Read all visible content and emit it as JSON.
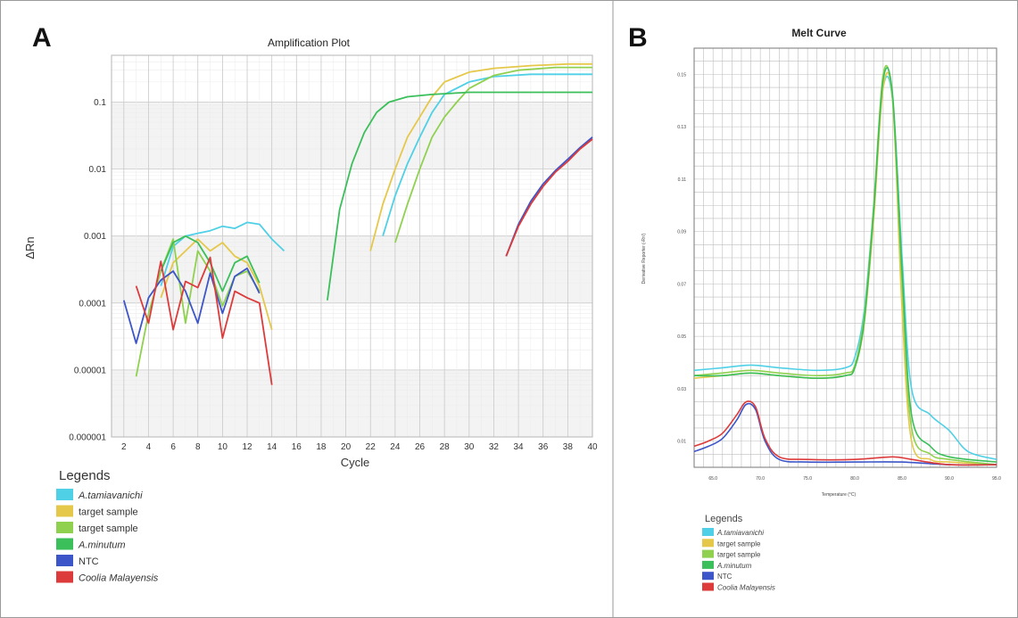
{
  "panels": {
    "a_label": "A",
    "b_label": "B"
  },
  "colors": {
    "a_tamiavanichi": "#4fd0e6",
    "target_sample_1": "#e5c84a",
    "target_sample_2": "#8fd14f",
    "a_minutum": "#3bbf5a",
    "ntc": "#3c55c8",
    "coolia_malayensis": "#dd3b3b"
  },
  "chart_data": [
    {
      "type": "line",
      "title": "Amplification Plot",
      "xlabel": "Cycle",
      "ylabel": "ΔRn",
      "yscale": "log",
      "xlim": [
        1,
        40
      ],
      "ylim": [
        1e-06,
        0.5
      ],
      "x_ticks": [
        "2",
        "4",
        "6",
        "8",
        "10",
        "12",
        "14",
        "16",
        "18",
        "20",
        "22",
        "24",
        "26",
        "28",
        "30",
        "32",
        "34",
        "36",
        "38",
        "40"
      ],
      "y_ticks": [
        {
          "value": 0.1,
          "label": "0.1"
        },
        {
          "value": 0.01,
          "label": "0.01"
        },
        {
          "value": 0.001,
          "label": "0.001"
        },
        {
          "value": 0.0001,
          "label": "0.0001"
        },
        {
          "value": 1e-05,
          "label": "0.00001"
        },
        {
          "value": 1e-06,
          "label": "0.000001"
        }
      ],
      "grid": true,
      "legend_title": "Legends",
      "legend_position": "bottom-left",
      "series": [
        {
          "name": "A.tamiavanichi",
          "italic": true,
          "color": "#4fd0e6",
          "segments": [
            [
              [
                5,
                0.00018
              ],
              [
                6,
                0.0007
              ],
              [
                7,
                0.001
              ],
              [
                8,
                0.0011
              ],
              [
                9,
                0.0012
              ],
              [
                10,
                0.0014
              ],
              [
                11,
                0.0013
              ],
              [
                12,
                0.0016
              ],
              [
                13,
                0.0015
              ],
              [
                14,
                0.0009
              ],
              [
                15,
                0.0006
              ]
            ],
            [
              [
                23,
                0.001
              ],
              [
                24,
                0.004
              ],
              [
                25,
                0.012
              ],
              [
                26,
                0.03
              ],
              [
                27,
                0.07
              ],
              [
                28,
                0.13
              ],
              [
                30,
                0.2
              ],
              [
                32,
                0.24
              ],
              [
                35,
                0.26
              ],
              [
                38,
                0.26
              ],
              [
                40,
                0.26
              ]
            ]
          ]
        },
        {
          "name": "target sample",
          "italic": false,
          "color": "#e5c84a",
          "segments": [
            [
              [
                5,
                0.00012
              ],
              [
                6,
                0.0004
              ],
              [
                7,
                0.0006
              ],
              [
                8,
                0.0009
              ],
              [
                9,
                0.0006
              ],
              [
                10,
                0.0008
              ],
              [
                11,
                0.0005
              ],
              [
                12,
                0.0004
              ],
              [
                13,
                0.00018
              ],
              [
                14,
                4e-05
              ]
            ],
            [
              [
                22,
                0.0006
              ],
              [
                23,
                0.003
              ],
              [
                24,
                0.01
              ],
              [
                25,
                0.03
              ],
              [
                26,
                0.06
              ],
              [
                27,
                0.12
              ],
              [
                28,
                0.2
              ],
              [
                30,
                0.28
              ],
              [
                32,
                0.32
              ],
              [
                35,
                0.35
              ],
              [
                38,
                0.37
              ],
              [
                40,
                0.37
              ]
            ]
          ]
        },
        {
          "name": "target sample",
          "italic": false,
          "color": "#8fd14f",
          "segments": [
            [
              [
                3,
                8e-06
              ],
              [
                4,
                7e-05
              ],
              [
                5,
                0.0003
              ],
              [
                6,
                0.0009
              ],
              [
                7,
                5e-05
              ],
              [
                8,
                0.0006
              ],
              [
                9,
                0.0003
              ],
              [
                10,
                9e-05
              ],
              [
                11,
                0.00025
              ],
              [
                12,
                0.0003
              ],
              [
                13,
                0.00015
              ]
            ],
            [
              [
                24,
                0.0008
              ],
              [
                25,
                0.003
              ],
              [
                26,
                0.01
              ],
              [
                27,
                0.03
              ],
              [
                28,
                0.06
              ],
              [
                29,
                0.1
              ],
              [
                30,
                0.16
              ],
              [
                32,
                0.25
              ],
              [
                34,
                0.3
              ],
              [
                37,
                0.33
              ],
              [
                40,
                0.33
              ]
            ]
          ]
        },
        {
          "name": "A.minutum",
          "italic": true,
          "color": "#3bbf5a",
          "segments": [
            [
              [
                5,
                0.0003
              ],
              [
                6,
                0.0008
              ],
              [
                7,
                0.001
              ],
              [
                8,
                0.0008
              ],
              [
                9,
                0.0004
              ],
              [
                10,
                0.00015
              ],
              [
                11,
                0.0004
              ],
              [
                12,
                0.0005
              ],
              [
                13,
                0.0002
              ]
            ],
            [
              [
                18.5,
                0.00011
              ],
              [
                19.5,
                0.0025
              ],
              [
                20.5,
                0.012
              ],
              [
                21.5,
                0.035
              ],
              [
                22.5,
                0.07
              ],
              [
                23.5,
                0.1
              ],
              [
                25,
                0.12
              ],
              [
                27,
                0.13
              ],
              [
                30,
                0.14
              ],
              [
                35,
                0.14
              ],
              [
                40,
                0.14
              ]
            ]
          ]
        },
        {
          "name": "NTC",
          "italic": false,
          "color": "#3c55c8",
          "segments": [
            [
              [
                2,
                0.00011
              ],
              [
                3,
                2.5e-05
              ],
              [
                4,
                0.00012
              ],
              [
                5,
                0.00022
              ],
              [
                6,
                0.0003
              ],
              [
                7,
                0.00015
              ],
              [
                8,
                5e-05
              ],
              [
                9,
                0.00028
              ],
              [
                10,
                7e-05
              ],
              [
                11,
                0.00025
              ],
              [
                12,
                0.00033
              ],
              [
                13,
                0.00014
              ]
            ],
            [
              [
                33,
                0.0005
              ],
              [
                34,
                0.0015
              ],
              [
                35,
                0.0033
              ],
              [
                36,
                0.006
              ],
              [
                37,
                0.0095
              ],
              [
                38,
                0.014
              ],
              [
                39,
                0.021
              ],
              [
                40,
                0.03
              ]
            ]
          ]
        },
        {
          "name": "Coolia Malayensis",
          "italic": true,
          "color": "#dd3b3b",
          "segments": [
            [
              [
                3,
                0.00018
              ],
              [
                4,
                5e-05
              ],
              [
                5,
                0.00042
              ],
              [
                6,
                4e-05
              ],
              [
                7,
                0.00021
              ],
              [
                8,
                0.00017
              ],
              [
                9,
                0.00048
              ],
              [
                10,
                3e-05
              ],
              [
                11,
                0.00015
              ],
              [
                12,
                0.00012
              ],
              [
                13,
                0.0001
              ],
              [
                14,
                6e-06
              ]
            ],
            [
              [
                33,
                0.0005
              ],
              [
                34,
                0.0014
              ],
              [
                35,
                0.003
              ],
              [
                36,
                0.0055
              ],
              [
                37,
                0.009
              ],
              [
                38,
                0.013
              ],
              [
                39,
                0.02
              ],
              [
                40,
                0.028
              ]
            ]
          ]
        }
      ]
    },
    {
      "type": "line",
      "title": "Melt Curve",
      "xlabel": "Temperature (°C)",
      "ylabel": "Derivative Reporter (-Rn')",
      "xlim": [
        63,
        95
      ],
      "ylim": [
        0.0,
        0.16
      ],
      "x_ticks": [
        "65.0",
        "70.0",
        "75.0",
        "80.0",
        "85.0",
        "90.0",
        "95.0"
      ],
      "y_ticks": [
        "0.01",
        "0.03",
        "0.05",
        "0.07",
        "0.09",
        "0.11",
        "0.13",
        "0.15"
      ],
      "grid": true,
      "legend_title": "Legends",
      "legend_position": "bottom-left",
      "series": [
        {
          "name": "A.tamiavanichi",
          "italic": true,
          "color": "#4fd0e6",
          "points": [
            [
              63,
              0.037
            ],
            [
              66,
              0.038
            ],
            [
              69,
              0.039
            ],
            [
              72,
              0.038
            ],
            [
              76,
              0.037
            ],
            [
              79,
              0.038
            ],
            [
              80,
              0.042
            ],
            [
              81,
              0.06
            ],
            [
              82,
              0.1
            ],
            [
              83,
              0.145
            ],
            [
              84,
              0.14
            ],
            [
              85,
              0.08
            ],
            [
              86,
              0.03
            ],
            [
              88,
              0.02
            ],
            [
              90,
              0.014
            ],
            [
              92,
              0.006
            ],
            [
              95,
              0.003
            ]
          ]
        },
        {
          "name": "target sample",
          "italic": false,
          "color": "#e5c84a",
          "points": [
            [
              63,
              0.034
            ],
            [
              66,
              0.035
            ],
            [
              69,
              0.036
            ],
            [
              72,
              0.035
            ],
            [
              76,
              0.034
            ],
            [
              79,
              0.035
            ],
            [
              80,
              0.038
            ],
            [
              81,
              0.055
            ],
            [
              82,
              0.095
            ],
            [
              83,
              0.145
            ],
            [
              84,
              0.14
            ],
            [
              85,
              0.06
            ],
            [
              86,
              0.01
            ],
            [
              88,
              0.003
            ],
            [
              90,
              0.002
            ],
            [
              95,
              0.001
            ]
          ]
        },
        {
          "name": "target sample",
          "italic": false,
          "color": "#8fd14f",
          "points": [
            [
              63,
              0.035
            ],
            [
              66,
              0.036
            ],
            [
              69,
              0.037
            ],
            [
              72,
              0.036
            ],
            [
              76,
              0.035
            ],
            [
              79,
              0.036
            ],
            [
              80,
              0.039
            ],
            [
              81,
              0.058
            ],
            [
              82,
              0.1
            ],
            [
              83,
              0.15
            ],
            [
              84,
              0.14
            ],
            [
              85,
              0.07
            ],
            [
              86,
              0.015
            ],
            [
              88,
              0.005
            ],
            [
              90,
              0.003
            ],
            [
              95,
              0.001
            ]
          ]
        },
        {
          "name": "A.minutum",
          "italic": true,
          "color": "#3bbf5a",
          "points": [
            [
              63,
              0.035
            ],
            [
              66,
              0.035
            ],
            [
              69,
              0.036
            ],
            [
              72,
              0.035
            ],
            [
              76,
              0.034
            ],
            [
              79,
              0.035
            ],
            [
              80,
              0.038
            ],
            [
              81,
              0.056
            ],
            [
              82,
              0.098
            ],
            [
              83,
              0.148
            ],
            [
              84,
              0.142
            ],
            [
              85,
              0.075
            ],
            [
              86,
              0.02
            ],
            [
              88,
              0.008
            ],
            [
              90,
              0.004
            ],
            [
              95,
              0.002
            ]
          ]
        },
        {
          "name": "NTC",
          "italic": false,
          "color": "#3c55c8",
          "points": [
            [
              63,
              0.006
            ],
            [
              64.5,
              0.008
            ],
            [
              66,
              0.011
            ],
            [
              67.5,
              0.018
            ],
            [
              68.5,
              0.024
            ],
            [
              69.5,
              0.022
            ],
            [
              70.5,
              0.01
            ],
            [
              72,
              0.003
            ],
            [
              75,
              0.002
            ],
            [
              80,
              0.002
            ],
            [
              85,
              0.002
            ],
            [
              90,
              0.001
            ],
            [
              95,
              0.001
            ]
          ]
        },
        {
          "name": "Coolia Malayensis",
          "italic": true,
          "color": "#dd3b3b",
          "points": [
            [
              63,
              0.008
            ],
            [
              64.5,
              0.01
            ],
            [
              66,
              0.013
            ],
            [
              67.5,
              0.02
            ],
            [
              68.5,
              0.025
            ],
            [
              69.5,
              0.023
            ],
            [
              70.5,
              0.011
            ],
            [
              72,
              0.004
            ],
            [
              75,
              0.003
            ],
            [
              80,
              0.003
            ],
            [
              84,
              0.004
            ],
            [
              86,
              0.003
            ],
            [
              90,
              0.001
            ],
            [
              95,
              0.001
            ]
          ]
        }
      ]
    }
  ]
}
